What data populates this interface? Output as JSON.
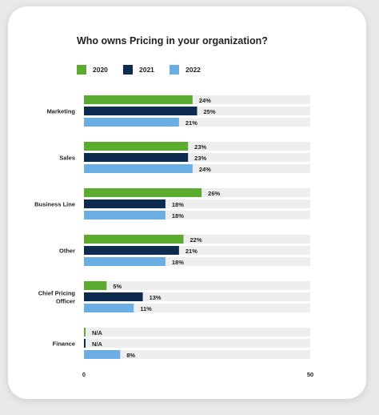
{
  "chart_data": {
    "type": "bar",
    "orientation": "horizontal",
    "title": "Who owns Pricing in your organization?",
    "categories": [
      "Marketing",
      "Sales",
      "Business Line",
      "Other",
      "Chief Pricing Officer",
      "Finance"
    ],
    "category_display": [
      [
        "Marketing"
      ],
      [
        "Sales"
      ],
      [
        "Business Line"
      ],
      [
        "Other"
      ],
      [
        "Chief Pricing",
        "Officer"
      ],
      [
        "Finance"
      ]
    ],
    "series": [
      {
        "name": "2020",
        "color": "#5aab2e",
        "values": [
          24,
          23,
          26,
          22,
          5,
          0
        ],
        "labels": [
          "24%",
          "23%",
          "26%",
          "22%",
          "5%",
          "N/A"
        ]
      },
      {
        "name": "2021",
        "color": "#0d2a4f",
        "values": [
          25,
          23,
          18,
          21,
          13,
          0
        ],
        "labels": [
          "25%",
          "23%",
          "18%",
          "21%",
          "13%",
          "N/A"
        ]
      },
      {
        "name": "2022",
        "color": "#6aaee3",
        "values": [
          21,
          24,
          18,
          18,
          11,
          8
        ],
        "labels": [
          "21%",
          "24%",
          "18%",
          "18%",
          "11%",
          "8%"
        ]
      }
    ],
    "xlim": [
      0,
      50
    ],
    "x_ticks": [
      "0",
      "50"
    ],
    "legend_position": "top-left",
    "track_color": "#eeeeee"
  }
}
